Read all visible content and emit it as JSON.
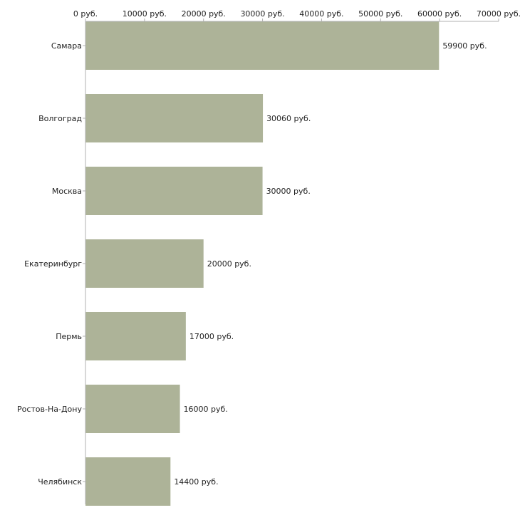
{
  "chart_data": {
    "type": "bar",
    "orientation": "horizontal",
    "title": "",
    "xlabel": "",
    "ylabel": "",
    "categories": [
      "Самара",
      "Волгоград",
      "Москва",
      "Екатеринбург",
      "Пермь",
      "Ростов-На-Дону",
      "Челябинск"
    ],
    "values": [
      59900,
      30060,
      30000,
      20000,
      17000,
      16000,
      14400
    ],
    "value_labels": [
      "59900 руб.",
      "30060 руб.",
      "30000 руб.",
      "20000 руб.",
      "17000 руб.",
      "16000 руб.",
      "14400 руб."
    ],
    "xlim": [
      0,
      70000
    ],
    "x_ticks": [
      0,
      10000,
      20000,
      30000,
      40000,
      50000,
      60000,
      70000
    ],
    "x_tick_labels": [
      "0 руб.",
      "10000 руб.",
      "20000 руб.",
      "30000 руб.",
      "40000 руб.",
      "50000 руб.",
      "60000 руб.",
      "70000 руб."
    ],
    "axis_position": "top",
    "grid": false,
    "legend": "none",
    "colors": {
      "bar": "#adb398",
      "axis": "#b0b0b0",
      "text": "#222222"
    }
  }
}
